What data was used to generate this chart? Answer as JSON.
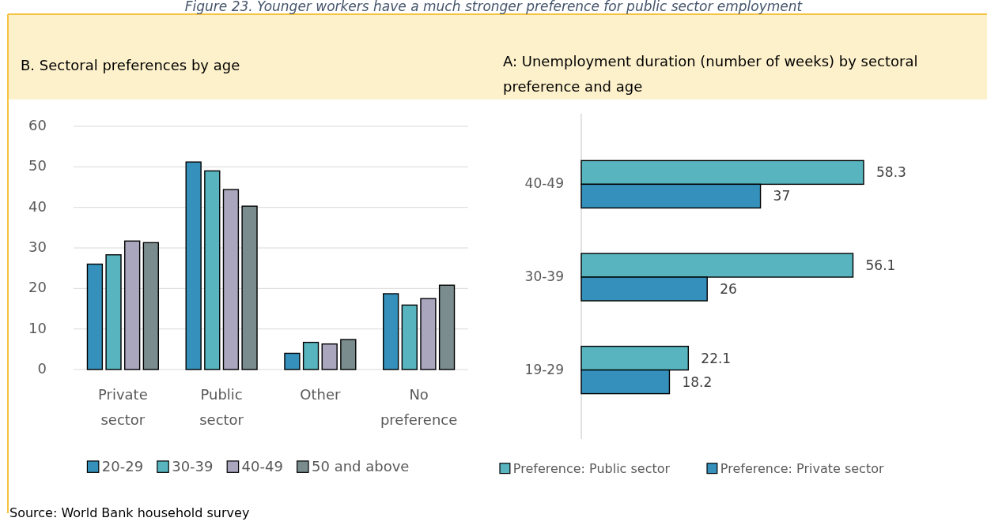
{
  "chart_data": [
    {
      "type": "bar",
      "title": "Figure 23. Younger workers have a much stronger preference for public sector employment",
      "subtitle": "B. Sectoral preferences by age",
      "categories": [
        "Private sector",
        "Public sector",
        "Other",
        "No preference"
      ],
      "series": [
        {
          "name": "20-29",
          "color": "#3591bb",
          "values": [
            26.0,
            51.2,
            4.0,
            18.7
          ]
        },
        {
          "name": "30-39",
          "color": "#58b5bf",
          "values": [
            28.3,
            49.0,
            6.7,
            15.9
          ]
        },
        {
          "name": "40-49",
          "color": "#a9a6be",
          "values": [
            31.7,
            44.4,
            6.3,
            17.5
          ]
        },
        {
          "name": "50 and above",
          "color": "#7a8c8e",
          "values": [
            31.3,
            40.3,
            7.4,
            20.8
          ]
        }
      ],
      "ylim": [
        0,
        60
      ],
      "yticks": [
        0,
        10,
        20,
        30,
        40,
        50,
        60
      ],
      "grid": "y",
      "legend": "bottom",
      "annotations": [
        "Source: World Bank household survey"
      ]
    },
    {
      "type": "bar",
      "orientation": "horizontal",
      "title": "A: Unemployment duration (number of weeks) by sectoral preference and age",
      "categories": [
        "40-49",
        "30-39",
        "19-29"
      ],
      "series": [
        {
          "name": "Preference: Public sector",
          "color": "#58b5bf",
          "values": [
            58.3,
            56.1,
            22.1
          ]
        },
        {
          "name": "Preference: Private sector",
          "color": "#3591bb",
          "values": [
            37,
            26,
            18.2
          ]
        }
      ],
      "data_labels": true,
      "tick_labels": "y",
      "legend": "bottom"
    }
  ]
}
